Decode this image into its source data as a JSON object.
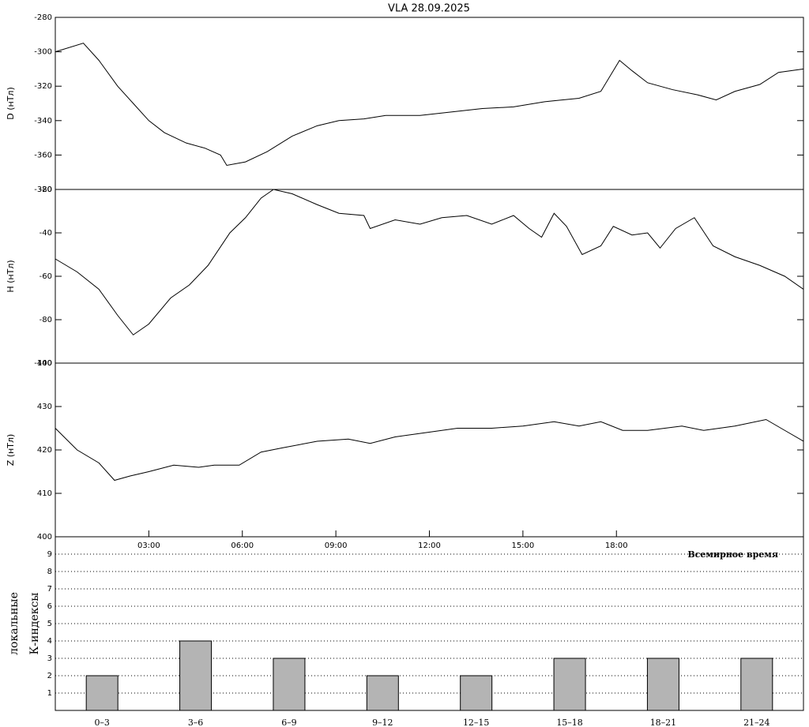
{
  "chart_data": [
    {
      "type": "line",
      "title": "VLA   28.09.2025",
      "ylabel": "D (нТл)",
      "color": "#000000",
      "x": [
        0,
        0.9,
        1.4,
        2.0,
        2.5,
        3.0,
        3.5,
        4.2,
        4.8,
        5.3,
        5.5,
        6.1,
        6.8,
        7.6,
        8.4,
        9.1,
        9.9,
        10.6,
        11.7,
        12.7,
        13.7,
        14.7,
        15.7,
        16.8,
        17.5,
        18.1,
        18.5,
        19.0,
        19.8,
        20.6,
        21.2,
        21.8,
        22.6,
        23.2,
        24
      ],
      "values": [
        -300,
        -295,
        -305,
        -320,
        -330,
        -340,
        -347,
        -353,
        -356,
        -360,
        -366,
        -364,
        -358,
        -349,
        -343,
        -340,
        -339,
        -337,
        -337,
        -335,
        -333,
        -332,
        -329,
        -327,
        -323,
        -305,
        -311,
        -318,
        -322,
        -325,
        -328,
        -323,
        -319,
        -312,
        -310
      ],
      "xlim": [
        0,
        24
      ],
      "ylim": [
        -380,
        -280
      ],
      "yticks": [
        -280,
        -300,
        -320,
        -340,
        -360,
        -380
      ]
    },
    {
      "type": "line",
      "ylabel": "H (нТл)",
      "color": "#000000",
      "x": [
        0,
        0.7,
        1.4,
        2.0,
        2.5,
        3.0,
        3.7,
        4.3,
        4.9,
        5.6,
        6.1,
        6.6,
        7.0,
        7.6,
        8.4,
        9.1,
        9.9,
        10.1,
        10.9,
        11.7,
        12.4,
        13.2,
        14.0,
        14.7,
        15.2,
        15.6,
        16.0,
        16.4,
        16.9,
        17.5,
        17.9,
        18.5,
        19.0,
        19.4,
        19.9,
        20.5,
        21.1,
        21.8,
        22.6,
        23.4,
        24
      ],
      "values": [
        -52,
        -58,
        -66,
        -78,
        -87,
        -82,
        -70,
        -64,
        -55,
        -40,
        -33,
        -24,
        -20,
        -22,
        -27,
        -31,
        -32,
        -38,
        -34,
        -36,
        -33,
        -32,
        -36,
        -32,
        -38,
        -42,
        -31,
        -37,
        -50,
        -46,
        -37,
        -41,
        -40,
        -47,
        -38,
        -33,
        -46,
        -51,
        -55,
        -60,
        -66
      ],
      "xlim": [
        0,
        24
      ],
      "ylim": [
        -100,
        -20
      ],
      "yticks": [
        -20,
        -40,
        -60,
        -80,
        -100
      ]
    },
    {
      "type": "line",
      "ylabel": "Z (нТл)",
      "xlabel": "Всемирное время",
      "color": "#000000",
      "x": [
        0,
        0.7,
        1.4,
        1.9,
        2.4,
        3.0,
        3.8,
        4.6,
        5.1,
        5.9,
        6.6,
        7.3,
        8.4,
        9.4,
        10.1,
        10.9,
        11.9,
        12.9,
        14.0,
        15.0,
        16.0,
        16.8,
        17.5,
        18.2,
        19.0,
        20.1,
        20.8,
        21.8,
        22.8,
        23.4,
        24
      ],
      "values": [
        425,
        420,
        417,
        413,
        414,
        415,
        416.5,
        416,
        416.5,
        416.5,
        419.5,
        420.5,
        422,
        422.5,
        421.5,
        423,
        424,
        425,
        425,
        425.5,
        426.5,
        425.5,
        426.5,
        424.5,
        424.5,
        425.5,
        424.5,
        425.5,
        427,
        424.5,
        422
      ],
      "xlim": [
        0,
        24
      ],
      "ylim": [
        400,
        440
      ],
      "yticks": [
        400,
        410,
        420,
        430,
        440
      ],
      "xticks": [
        {
          "value": 3,
          "label": "03:00"
        },
        {
          "value": 6,
          "label": "06:00"
        },
        {
          "value": 9,
          "label": "09:00"
        },
        {
          "value": 12,
          "label": "12:00"
        },
        {
          "value": 15,
          "label": "15:00"
        },
        {
          "value": 18,
          "label": "18:00"
        }
      ]
    },
    {
      "type": "bar",
      "ylabel": [
        "локальные",
        "К-индексы"
      ],
      "color": "#b4b4b4",
      "grid": true,
      "categories": [
        "0–3",
        "3–6",
        "6–9",
        "9–12",
        "12–15",
        "15–18",
        "18–21",
        "21–24"
      ],
      "values": [
        2,
        4,
        3,
        2,
        2,
        3,
        3,
        3
      ],
      "ylim": [
        0,
        10
      ],
      "yticks": [
        1,
        2,
        3,
        4,
        5,
        6,
        7,
        8,
        9
      ]
    }
  ]
}
